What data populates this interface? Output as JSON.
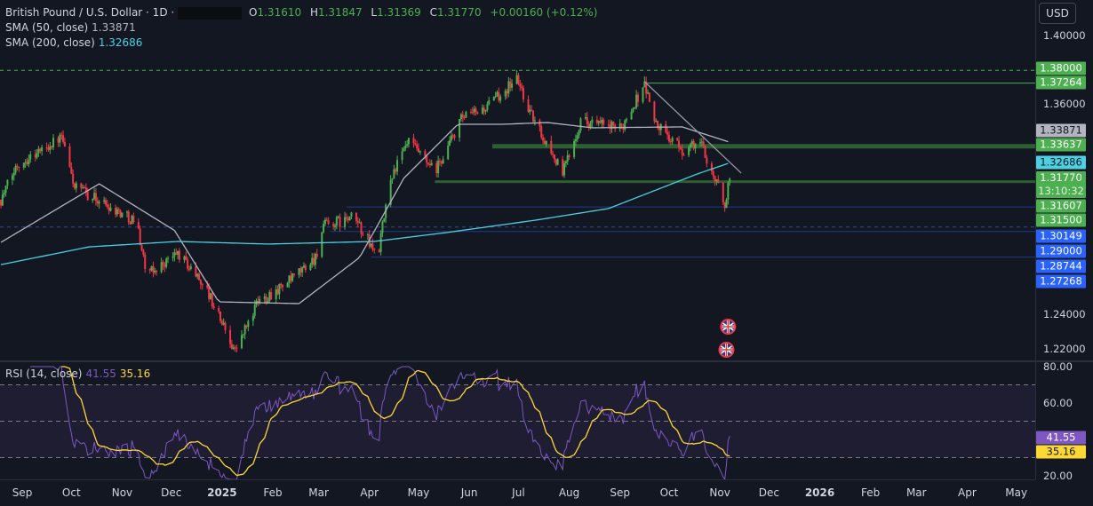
{
  "header": {
    "symbol": "British Pound / U.S. Dollar · 1D ·",
    "ohlc": [
      {
        "label": "O",
        "value": "1.31610"
      },
      {
        "label": "H",
        "value": "1.31847"
      },
      {
        "label": "L",
        "value": "1.31369"
      },
      {
        "label": "C",
        "value": "1.31770"
      }
    ],
    "change": "+0.00160 (+0.12%)",
    "sma50_label": "SMA (50, close)",
    "sma50_value": "1.33871",
    "sma200_label": "SMA (200, close)",
    "sma200_value": "1.32686",
    "currency_button": "USD"
  },
  "rsi_legend": {
    "label": "RSI (14, close)",
    "rsi": "41.55",
    "ma": "35.16"
  },
  "price_axis": {
    "ticks": [
      "1.40000",
      "1.36000",
      "1.24000",
      "1.22000"
    ],
    "tags": [
      {
        "text": "1.38000",
        "bg": "#4caf50",
        "fg": "#ffffff"
      },
      {
        "text": "1.37264",
        "bg": "#4caf50",
        "fg": "#ffffff"
      },
      {
        "text": "1.33871",
        "bg": "#b2b5be",
        "fg": "#131722"
      },
      {
        "text": "1.33637",
        "bg": "#4caf50",
        "fg": "#ffffff"
      },
      {
        "text": "1.32686",
        "bg": "#4dd0e1",
        "fg": "#131722"
      },
      {
        "text": "1.31770",
        "sub": "13:10:32",
        "bg": "#4caf50",
        "fg": "#ffffff"
      },
      {
        "text": "1.31607",
        "bg": "#4caf50",
        "fg": "#ffffff"
      },
      {
        "text": "1.31500",
        "bg": "#4caf50",
        "fg": "#ffffff"
      },
      {
        "text": "1.30149",
        "bg": "#2962ff",
        "fg": "#ffffff"
      },
      {
        "text": "1.29000",
        "bg": "#2962ff",
        "fg": "#ffffff"
      },
      {
        "text": "1.28744",
        "bg": "#2962ff",
        "fg": "#ffffff"
      },
      {
        "text": "1.27268",
        "bg": "#2962ff",
        "fg": "#ffffff"
      }
    ]
  },
  "rsi_axis": {
    "ticks": [
      "80.00",
      "60.00",
      "20.00"
    ],
    "tags": [
      {
        "text": "41.55",
        "bg": "#7e57c2",
        "fg": "#ffffff"
      },
      {
        "text": "35.16",
        "bg": "#fdd835",
        "fg": "#131722"
      }
    ]
  },
  "time_axis": [
    {
      "label": "Sep",
      "date": "2024-09-01"
    },
    {
      "label": "Oct",
      "date": "2024-10-01"
    },
    {
      "label": "Nov",
      "date": "2024-11-01"
    },
    {
      "label": "Dec",
      "date": "2024-12-01"
    },
    {
      "label": "2025",
      "date": "2025-01-01",
      "year": true
    },
    {
      "label": "Feb",
      "date": "2025-02-01"
    },
    {
      "label": "Mar",
      "date": "2025-03-01"
    },
    {
      "label": "Apr",
      "date": "2025-04-01"
    },
    {
      "label": "May",
      "date": "2025-05-01"
    },
    {
      "label": "Jun",
      "date": "2025-06-01"
    },
    {
      "label": "Jul",
      "date": "2025-07-01"
    },
    {
      "label": "Aug",
      "date": "2025-08-01"
    },
    {
      "label": "Sep",
      "date": "2025-09-01"
    },
    {
      "label": "Oct",
      "date": "2025-10-01"
    },
    {
      "label": "Nov",
      "date": "2025-11-01"
    },
    {
      "label": "Dec",
      "date": "2025-12-01"
    },
    {
      "label": "2026",
      "date": "2026-01-01",
      "year": true
    },
    {
      "label": "Feb",
      "date": "2026-02-01"
    },
    {
      "label": "Mar",
      "date": "2026-03-01"
    },
    {
      "label": "Apr",
      "date": "2026-04-01"
    },
    {
      "label": "May",
      "date": "2026-05-01"
    }
  ],
  "colors": {
    "up": "#4caf50",
    "down": "#f23645",
    "sma50": "#b2b5be",
    "sma200": "#4dd0e1",
    "rsi": "#7e57c2",
    "rsi_ma": "#fdd835",
    "background": "#131722"
  },
  "chart_data": {
    "type": "candlestick",
    "interval": "1D",
    "ylim": [
      1.215,
      1.405
    ],
    "rsi_ylim": [
      15,
      82
    ],
    "close_path": [
      [
        "2024-08-19",
        1.3057
      ],
      [
        "2024-08-29",
        1.326
      ],
      [
        "2024-09-25",
        1.3414
      ],
      [
        "2024-10-03",
        1.313
      ],
      [
        "2024-11-10",
        1.293
      ],
      [
        "2024-11-16",
        1.262
      ],
      [
        "2024-12-05",
        1.275
      ],
      [
        "2024-12-21",
        1.257
      ],
      [
        "2025-01-09",
        1.219
      ],
      [
        "2025-01-23",
        1.247
      ],
      [
        "2025-02-13",
        1.26
      ],
      [
        "2025-02-27",
        1.2725
      ],
      [
        "2025-03-04",
        1.2904
      ],
      [
        "2025-03-23",
        1.2955
      ],
      [
        "2025-04-06",
        1.2725
      ],
      [
        "2025-04-14",
        1.3184
      ],
      [
        "2025-04-25",
        1.339
      ],
      [
        "2025-05-11",
        1.321
      ],
      [
        "2025-05-27",
        1.3516
      ],
      [
        "2025-06-12",
        1.359
      ],
      [
        "2025-06-30",
        1.3755
      ],
      [
        "2025-07-09",
        1.354
      ],
      [
        "2025-07-28",
        1.321
      ],
      [
        "2025-08-08",
        1.3516
      ],
      [
        "2025-09-01",
        1.346
      ],
      [
        "2025-09-16",
        1.372
      ],
      [
        "2025-09-23",
        1.349
      ],
      [
        "2025-10-09",
        1.3337
      ],
      [
        "2025-10-20",
        1.339
      ],
      [
        "2025-10-31",
        1.313
      ],
      [
        "2025-11-04",
        1.3031
      ],
      [
        "2025-11-07",
        1.3177
      ]
    ],
    "last_candle": {
      "open": 1.3161,
      "high": 1.31847,
      "low": 1.31369,
      "close": 1.3177
    },
    "sma50": [
      [
        "2024-08-19",
        1.2812
      ],
      [
        "2024-10-18",
        1.3148
      ],
      [
        "2024-12-03",
        1.288
      ],
      [
        "2024-12-30",
        1.247
      ],
      [
        "2025-02-17",
        1.246
      ],
      [
        "2025-03-26",
        1.2725
      ],
      [
        "2025-04-22",
        1.318
      ],
      [
        "2025-05-25",
        1.349
      ],
      [
        "2025-06-21",
        1.349
      ],
      [
        "2025-07-19",
        1.35
      ],
      [
        "2025-08-15",
        1.347
      ],
      [
        "2025-10-09",
        1.3475
      ],
      [
        "2025-11-07",
        1.33871
      ]
    ],
    "sma200": [
      [
        "2024-08-19",
        1.2684
      ],
      [
        "2024-10-12",
        1.2786
      ],
      [
        "2024-12-05",
        1.2817
      ],
      [
        "2025-01-29",
        1.2802
      ],
      [
        "2025-04-04",
        1.2817
      ],
      [
        "2025-05-18",
        1.2868
      ],
      [
        "2025-07-12",
        1.294
      ],
      [
        "2025-08-25",
        1.3006
      ],
      [
        "2025-10-18",
        1.3204
      ],
      [
        "2025-11-07",
        1.32686
      ]
    ],
    "levels": [
      {
        "price": 1.38,
        "color": "#4caf50",
        "style": "dashed",
        "from": null
      },
      {
        "price": 1.37264,
        "color": "#4caf50",
        "style": "solid",
        "from": "2025-09-16"
      },
      {
        "price": 1.33637,
        "color": "#2e5e32",
        "style": "thick",
        "from": "2025-06-15"
      },
      {
        "price": 1.31607,
        "color": "#2e5e32",
        "style": "medium",
        "from": "2025-05-11"
      },
      {
        "price": 1.30149,
        "color": "#1e3a8a",
        "style": "solid",
        "from": "2025-03-18"
      },
      {
        "price": 1.29,
        "color": "#2f4aa0",
        "style": "dashed",
        "from": null
      },
      {
        "price": 1.28744,
        "color": "#1e3a8a",
        "style": "solid",
        "from": "2025-03-08"
      },
      {
        "price": 1.27268,
        "color": "#1e3a8a",
        "style": "solid",
        "from": "2025-04-02"
      }
    ],
    "trendline": {
      "from": [
        "2025-09-16",
        1.3735
      ],
      "to": [
        "2025-11-14",
        1.321
      ],
      "color": "#9598a1"
    },
    "rsi_levels": [
      70,
      50,
      30
    ],
    "events": [
      {
        "date": "2025-11-06",
        "icon": "uk-flag-icon"
      },
      {
        "date": "2025-11-05",
        "icon": "uk-flag-icon"
      }
    ]
  }
}
